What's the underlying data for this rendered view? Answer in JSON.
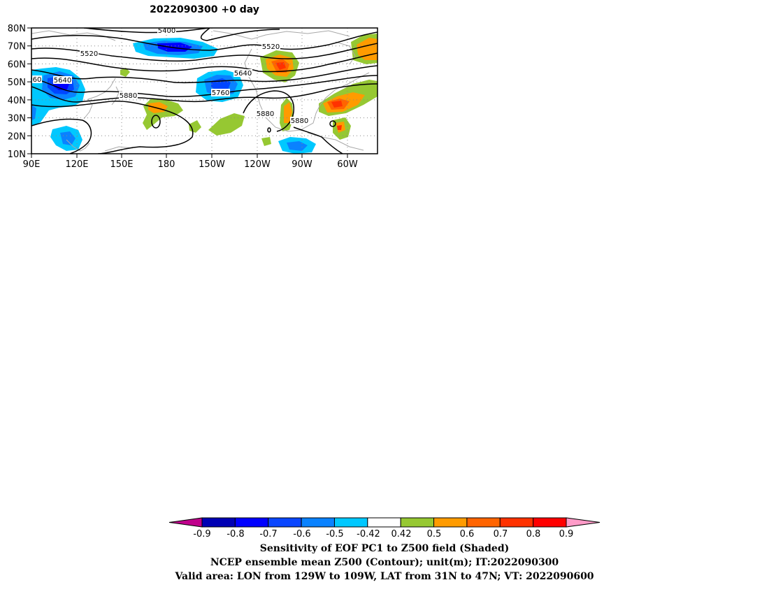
{
  "map": {
    "title": "2022090300 +0 day",
    "lat_labels": [
      "80N",
      "70N",
      "60N",
      "50N",
      "40N",
      "30N",
      "20N",
      "10N"
    ],
    "lon_labels": [
      "90E",
      "120E",
      "150E",
      "180",
      "150W",
      "120W",
      "90W",
      "60W"
    ],
    "contour_labels": [
      "5400",
      "5520",
      "5520",
      "5640",
      "5640",
      "60",
      "5760",
      "5880",
      "5880",
      "5880"
    ]
  },
  "colorbar": {
    "tick_labels": [
      "-0.9",
      "-0.8",
      "-0.7",
      "-0.6",
      "-0.5",
      "-0.42",
      "0.42",
      "0.5",
      "0.6",
      "0.7",
      "0.8",
      "0.9"
    ],
    "colors": [
      "#c0008c",
      "#0000b4",
      "#0000ff",
      "#0a46ff",
      "#0a82ff",
      "#00c8ff",
      "#ffffff",
      "#96c832",
      "#ff9b00",
      "#ff6400",
      "#ff3200",
      "#ff0000",
      "#ff9bc8"
    ]
  },
  "captions": {
    "line1": "Sensitivity of EOF PC1 to Z500 field (Shaded)",
    "line2": "NCEP ensemble mean Z500 (Contour); unit(m); IT:2022090300",
    "line3": "Valid area: LON from 129W to 109W, LAT from 31N to 47N; VT: 2022090600"
  }
}
